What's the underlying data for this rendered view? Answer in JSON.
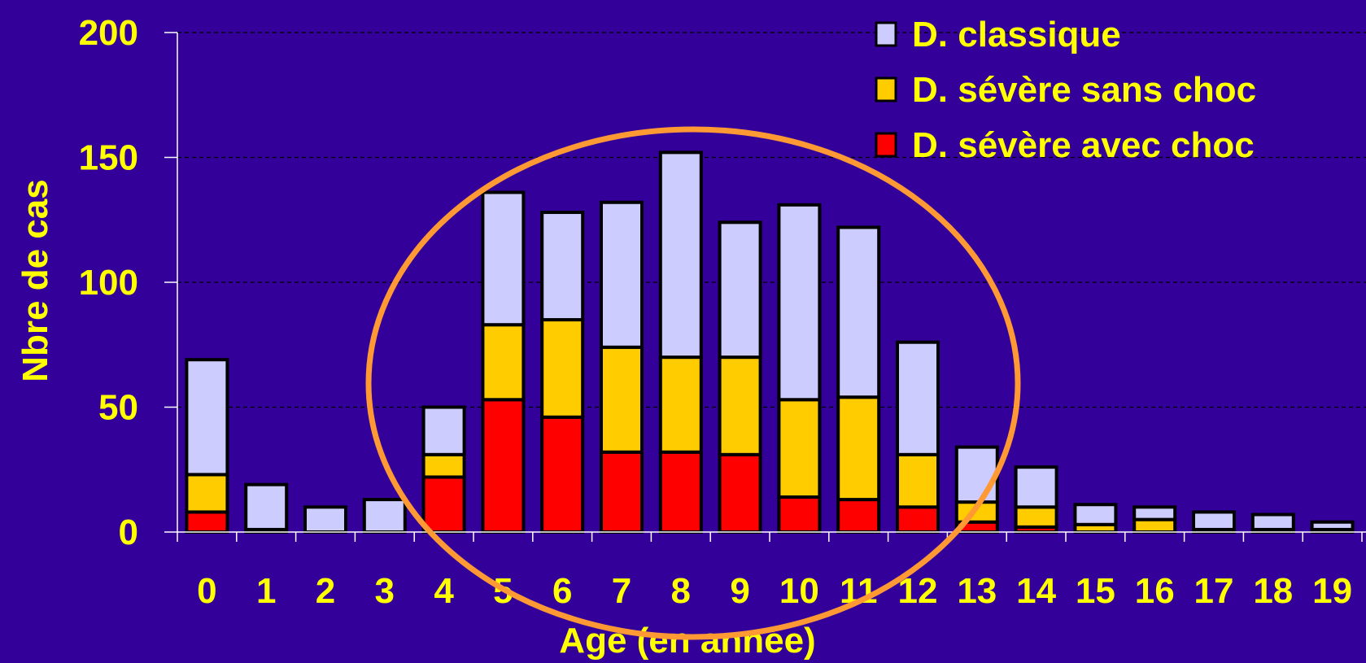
{
  "colors": {
    "background": "#330099",
    "text": "#FFFF00",
    "classique": "#CCCCFF",
    "sans_choc": "#FFCC00",
    "avec_choc": "#FF0000",
    "highlight_ellipse": "#FF9933",
    "gridline": "#000000"
  },
  "chart_data": {
    "type": "bar",
    "stacked": true,
    "title": "",
    "xlabel": "Age (en année)",
    "ylabel": "Nbre de cas",
    "ylim": [
      0,
      200
    ],
    "yticks": [
      "0",
      "50",
      "100",
      "150",
      "200"
    ],
    "grid": "horizontal dashed",
    "legend_position": "top-right",
    "categories": [
      "0",
      "1",
      "2",
      "3",
      "4",
      "5",
      "6",
      "7",
      "8",
      "9",
      "10",
      "11",
      "12",
      "13",
      "14",
      "15",
      "16",
      "17",
      "18",
      "19"
    ],
    "series": [
      {
        "name": "D. sévère avec choc",
        "color": "#FF0000",
        "values": [
          8,
          0,
          0,
          0,
          22,
          53,
          46,
          32,
          32,
          31,
          14,
          13,
          10,
          4,
          2,
          0,
          0,
          0,
          0,
          0
        ]
      },
      {
        "name": "D. sévère sans choc",
        "color": "#FFCC00",
        "values": [
          15,
          1,
          0,
          0,
          9,
          30,
          39,
          42,
          38,
          39,
          39,
          41,
          21,
          8,
          8,
          3,
          5,
          1,
          1,
          1
        ]
      },
      {
        "name": "D. classique",
        "color": "#CCCCFF",
        "values": [
          46,
          18,
          10,
          13,
          19,
          53,
          43,
          58,
          82,
          54,
          78,
          68,
          45,
          22,
          16,
          8,
          5,
          7,
          6,
          3
        ]
      }
    ],
    "legend_order": [
      "D. classique",
      "D. sévère sans choc",
      "D. sévère avec choc"
    ],
    "annotation": "ellipse highlighting ages 5-12"
  }
}
